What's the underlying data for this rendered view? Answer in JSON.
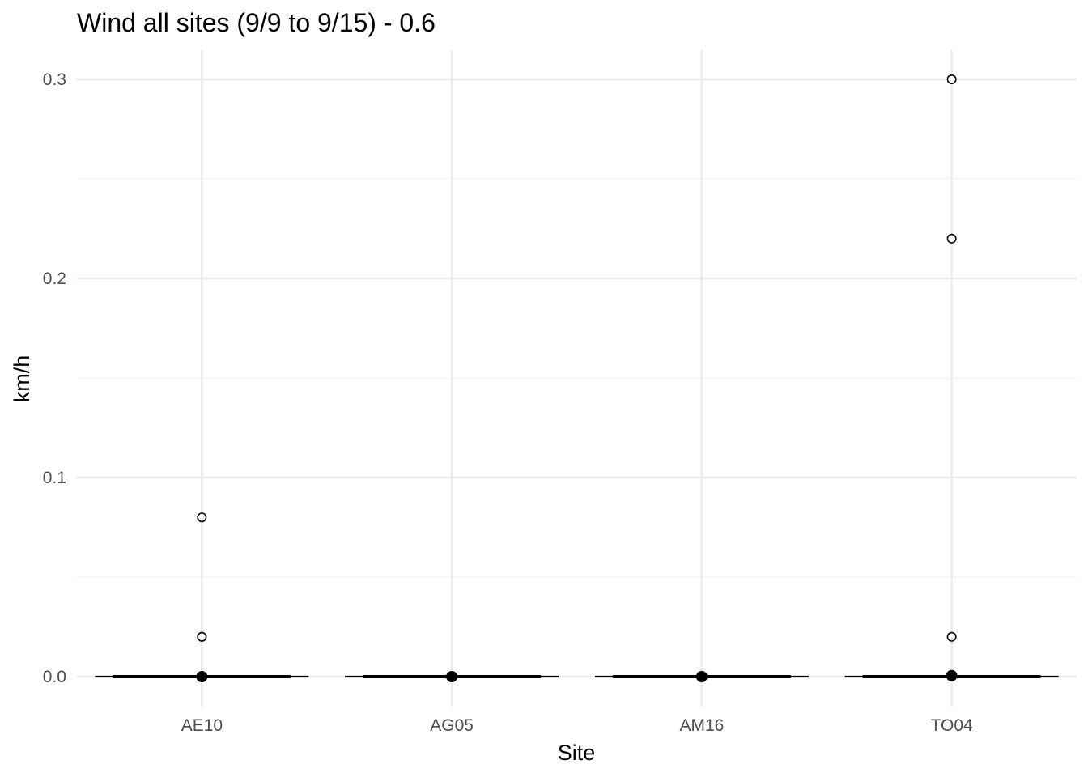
{
  "chart_data": {
    "type": "box",
    "title": "Wind all sites (9/9 to 9/15) - 0.6",
    "xlabel": "Site",
    "ylabel": "km/h",
    "categories": [
      "AE10",
      "AG05",
      "AM16",
      "TO04"
    ],
    "ylim": [
      -0.015,
      0.315
    ],
    "yticks": [
      0.0,
      0.1,
      0.2,
      0.3
    ],
    "ytick_labels": [
      "0.0",
      "0.1",
      "0.2",
      "0.3"
    ],
    "grid": true,
    "boxes": [
      {
        "site": "AE10",
        "min": 0,
        "q1": 0,
        "median": 0,
        "q3": 0,
        "max": 0,
        "mean": 0.0,
        "outliers": [
          0.08,
          0.02,
          0.02
        ]
      },
      {
        "site": "AG05",
        "min": 0,
        "q1": 0,
        "median": 0,
        "q3": 0,
        "max": 0,
        "mean": 0.0,
        "outliers": []
      },
      {
        "site": "AM16",
        "min": 0,
        "q1": 0,
        "median": 0,
        "q3": 0,
        "max": 0,
        "mean": 0.0,
        "outliers": []
      },
      {
        "site": "TO04",
        "min": 0,
        "q1": 0,
        "median": 0,
        "q3": 0,
        "max": 0,
        "mean": 0.0005,
        "outliers": [
          0.3,
          0.22,
          0.02
        ]
      }
    ],
    "colors": {
      "grid_major": "#ebebeb",
      "grid_minor": "#f2f2f2",
      "box": "#000000",
      "mean_point": "#000000",
      "outlier_stroke": "#000000"
    }
  }
}
